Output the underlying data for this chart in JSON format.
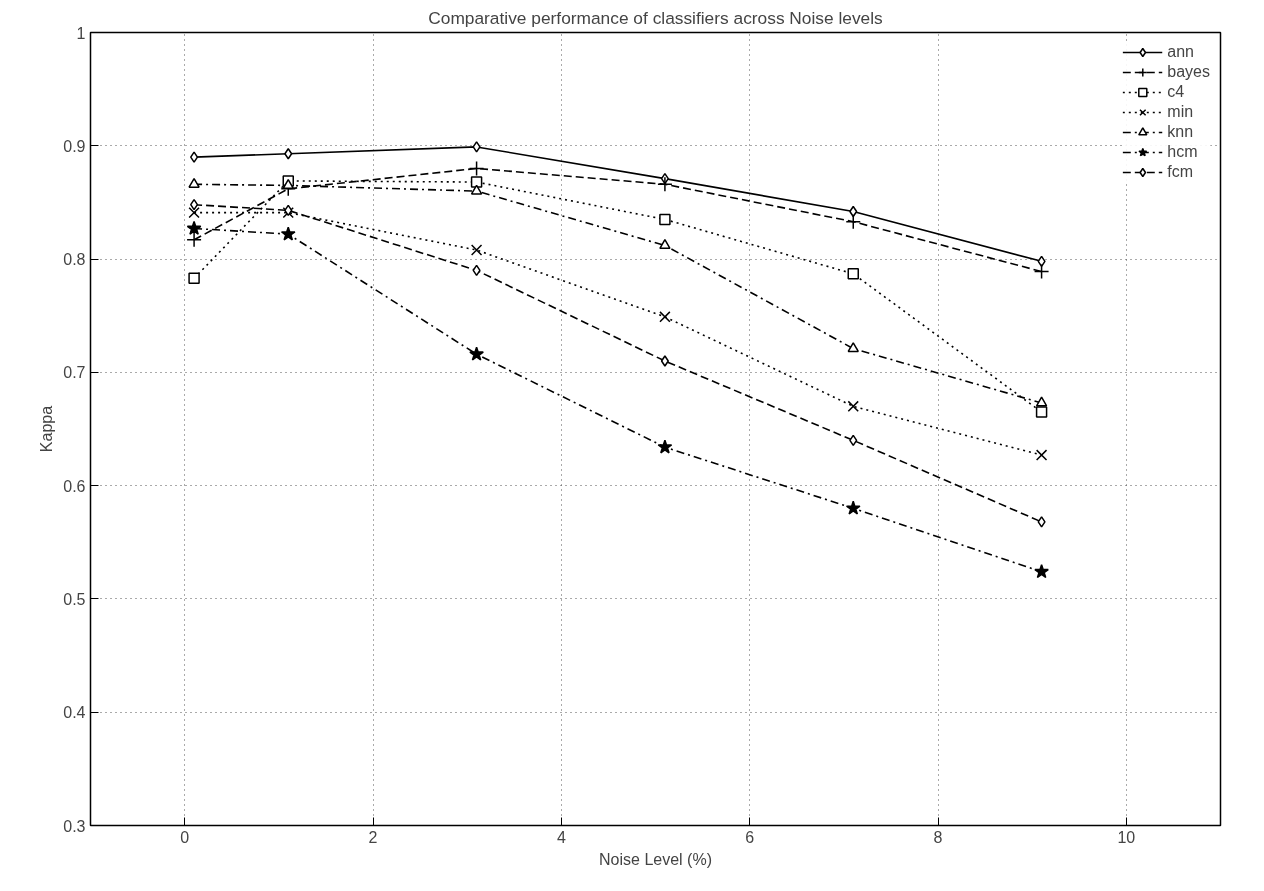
{
  "chart_data": {
    "type": "line",
    "title": "Comparative performance of classifiers across Noise levels",
    "xlabel": "Noise Level (%)",
    "ylabel": "Kappa",
    "x": [
      0.1,
      1.1,
      3.1,
      5.1,
      7.1,
      9.1
    ],
    "xlim": [
      -1,
      11
    ],
    "xticks": [
      0,
      2,
      4,
      6,
      8,
      10
    ],
    "ylim": [
      0.3,
      1
    ],
    "yticks": [
      0.3,
      0.4,
      0.5,
      0.6,
      0.7,
      0.8,
      0.9,
      {
        "value": 1,
        "label": "1"
      }
    ],
    "grid": true,
    "legend": "top right",
    "series": [
      {
        "name": "ann",
        "color": "#000000",
        "marker": "diamond",
        "line_style": "solid",
        "values": [
          0.89,
          0.893,
          0.899,
          0.871,
          0.842,
          0.798
        ]
      },
      {
        "name": "bayes",
        "color": "#000000",
        "marker": "cross",
        "line_style": "dashed",
        "values": [
          0.817,
          0.862,
          0.88,
          0.866,
          0.833,
          0.789
        ]
      },
      {
        "name": "c4",
        "color": "#000000",
        "marker": "square",
        "line_style": "dotted",
        "values": [
          0.783,
          0.869,
          0.868,
          0.835,
          0.787,
          0.665
        ]
      },
      {
        "name": "min",
        "color": "#000000",
        "marker": "x",
        "line_style": "dotted",
        "values": [
          0.841,
          0.841,
          0.808,
          0.749,
          0.67,
          0.627
        ]
      },
      {
        "name": "knn",
        "color": "#000000",
        "marker": "triangle",
        "line_style": "dashdot",
        "values": [
          0.866,
          0.865,
          0.86,
          0.812,
          0.721,
          0.673
        ]
      },
      {
        "name": "hcm",
        "color": "#000000",
        "marker": "star",
        "line_style": "dashdot",
        "values": [
          0.827,
          0.822,
          0.716,
          0.634,
          0.58,
          0.524
        ]
      },
      {
        "name": "fcm",
        "color": "#000000",
        "marker": "diamond",
        "line_style": "dashed",
        "values": [
          0.848,
          0.843,
          0.79,
          0.71,
          0.64,
          0.568
        ]
      }
    ]
  }
}
